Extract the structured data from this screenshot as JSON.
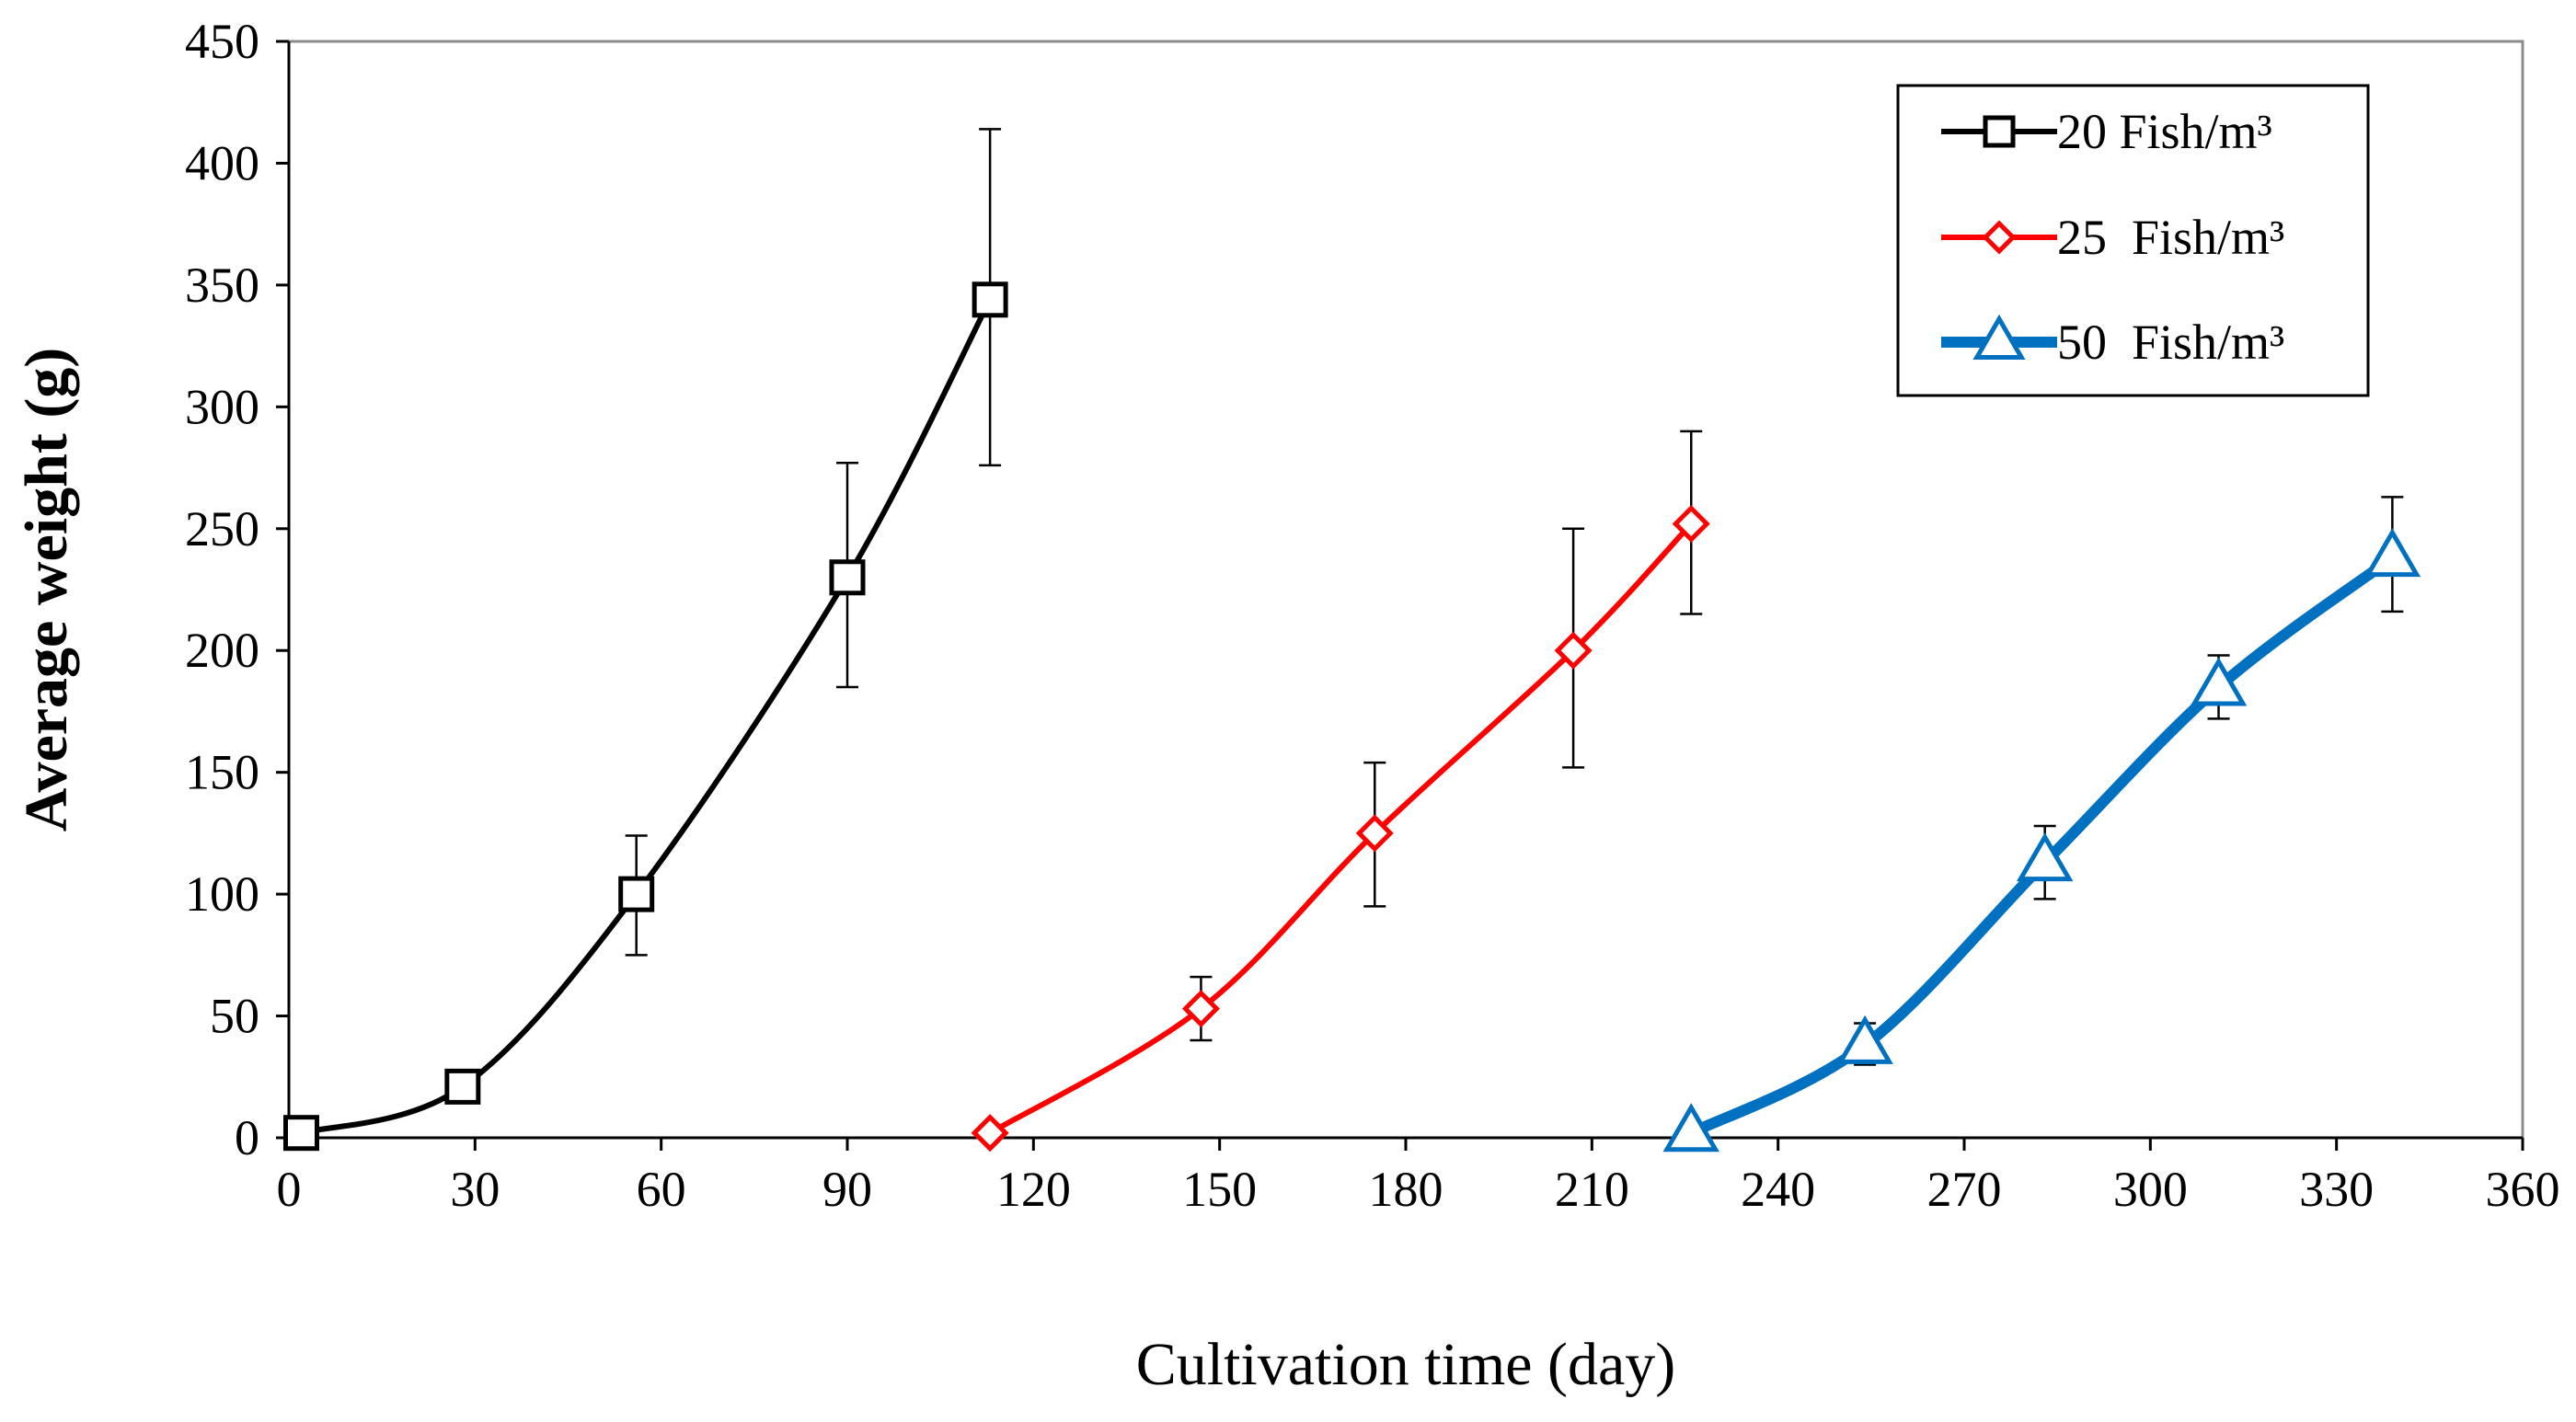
{
  "chart_data": {
    "type": "line",
    "title": "",
    "xlabel": "Cultivation  time (day)",
    "ylabel": "Average  weight (g)",
    "xlim": [
      0,
      360
    ],
    "ylim": [
      0,
      450
    ],
    "xticks": [
      0,
      30,
      60,
      90,
      120,
      150,
      180,
      210,
      240,
      270,
      300,
      330,
      360
    ],
    "yticks": [
      0,
      50,
      100,
      150,
      200,
      250,
      300,
      350,
      400,
      450
    ],
    "grid": false,
    "legend_position": "top-right",
    "series": [
      {
        "name": "20 Fish/m³",
        "color": "#000000",
        "marker": "square",
        "x": [
          2,
          28,
          56,
          90,
          113
        ],
        "y": [
          2,
          21,
          100,
          230,
          344
        ],
        "err_low": [
          2,
          21,
          75,
          185,
          276
        ],
        "err_high": [
          2,
          21,
          124,
          277,
          414
        ]
      },
      {
        "name": "25  Fish/m³",
        "color": "#ff0000",
        "marker": "diamond",
        "x": [
          113,
          147,
          175,
          207,
          226
        ],
        "y": [
          2,
          53,
          125,
          200,
          252
        ],
        "err_low": [
          2,
          40,
          95,
          152,
          215
        ],
        "err_high": [
          2,
          66,
          154,
          250,
          290
        ]
      },
      {
        "name": "50  Fish/m³",
        "color": "#0070c0",
        "marker": "triangle",
        "x": [
          226,
          254,
          283,
          311,
          339
        ],
        "y": [
          2,
          38,
          113,
          185,
          238
        ],
        "err_low": [
          2,
          30,
          98,
          172,
          216
        ],
        "err_high": [
          2,
          47,
          128,
          198,
          263
        ]
      }
    ]
  }
}
